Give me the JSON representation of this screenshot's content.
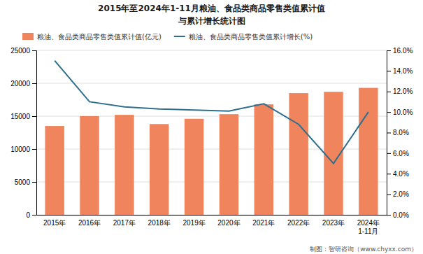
{
  "chart_data": {
    "type": "bar",
    "title": "2015年至2024年1-11月粮油、食品类商品零售类值累计值",
    "subtitle": "与累计增长统计图",
    "categories": [
      "2015年",
      "2016年",
      "2017年",
      "2018年",
      "2019年",
      "2020年",
      "2021年",
      "2022年",
      "2023年",
      "2024年\n1-11月"
    ],
    "series": [
      {
        "name": "粮油、食品类商品零售类值累计值(亿元)",
        "type": "bar",
        "color": "#F0845C",
        "values": [
          13500,
          15000,
          15200,
          13800,
          14600,
          15300,
          16800,
          18500,
          18700,
          19300
        ]
      },
      {
        "name": "粮油、食品类商品零售类值累计增长(%)",
        "type": "line",
        "color": "#2E6F8E",
        "axis": "y2",
        "values": [
          15.0,
          11.0,
          10.5,
          10.3,
          10.2,
          10.1,
          10.8,
          8.8,
          5.0,
          10.0
        ]
      }
    ],
    "ylim": [
      0,
      25000
    ],
    "yticks": [
      0,
      5000,
      10000,
      15000,
      20000,
      25000
    ],
    "y2lim": [
      0,
      16.0
    ],
    "y2ticks": [
      {
        "value": 0.0,
        "label": "0.0%"
      },
      {
        "value": 2.0,
        "label": "2.0%"
      },
      {
        "value": 4.0,
        "label": "4.0%"
      },
      {
        "value": 6.0,
        "label": "6.0%"
      },
      {
        "value": 8.0,
        "label": "8.0%"
      },
      {
        "value": 10.0,
        "label": "10.0%"
      },
      {
        "value": 12.0,
        "label": "12.0%"
      },
      {
        "value": 14.0,
        "label": "14.0%"
      },
      {
        "value": 16.0,
        "label": "16.0%"
      }
    ],
    "grid": true,
    "legend": "upper left",
    "annotations": [
      "制图：智研咨询（www.chyxx.com）"
    ]
  }
}
